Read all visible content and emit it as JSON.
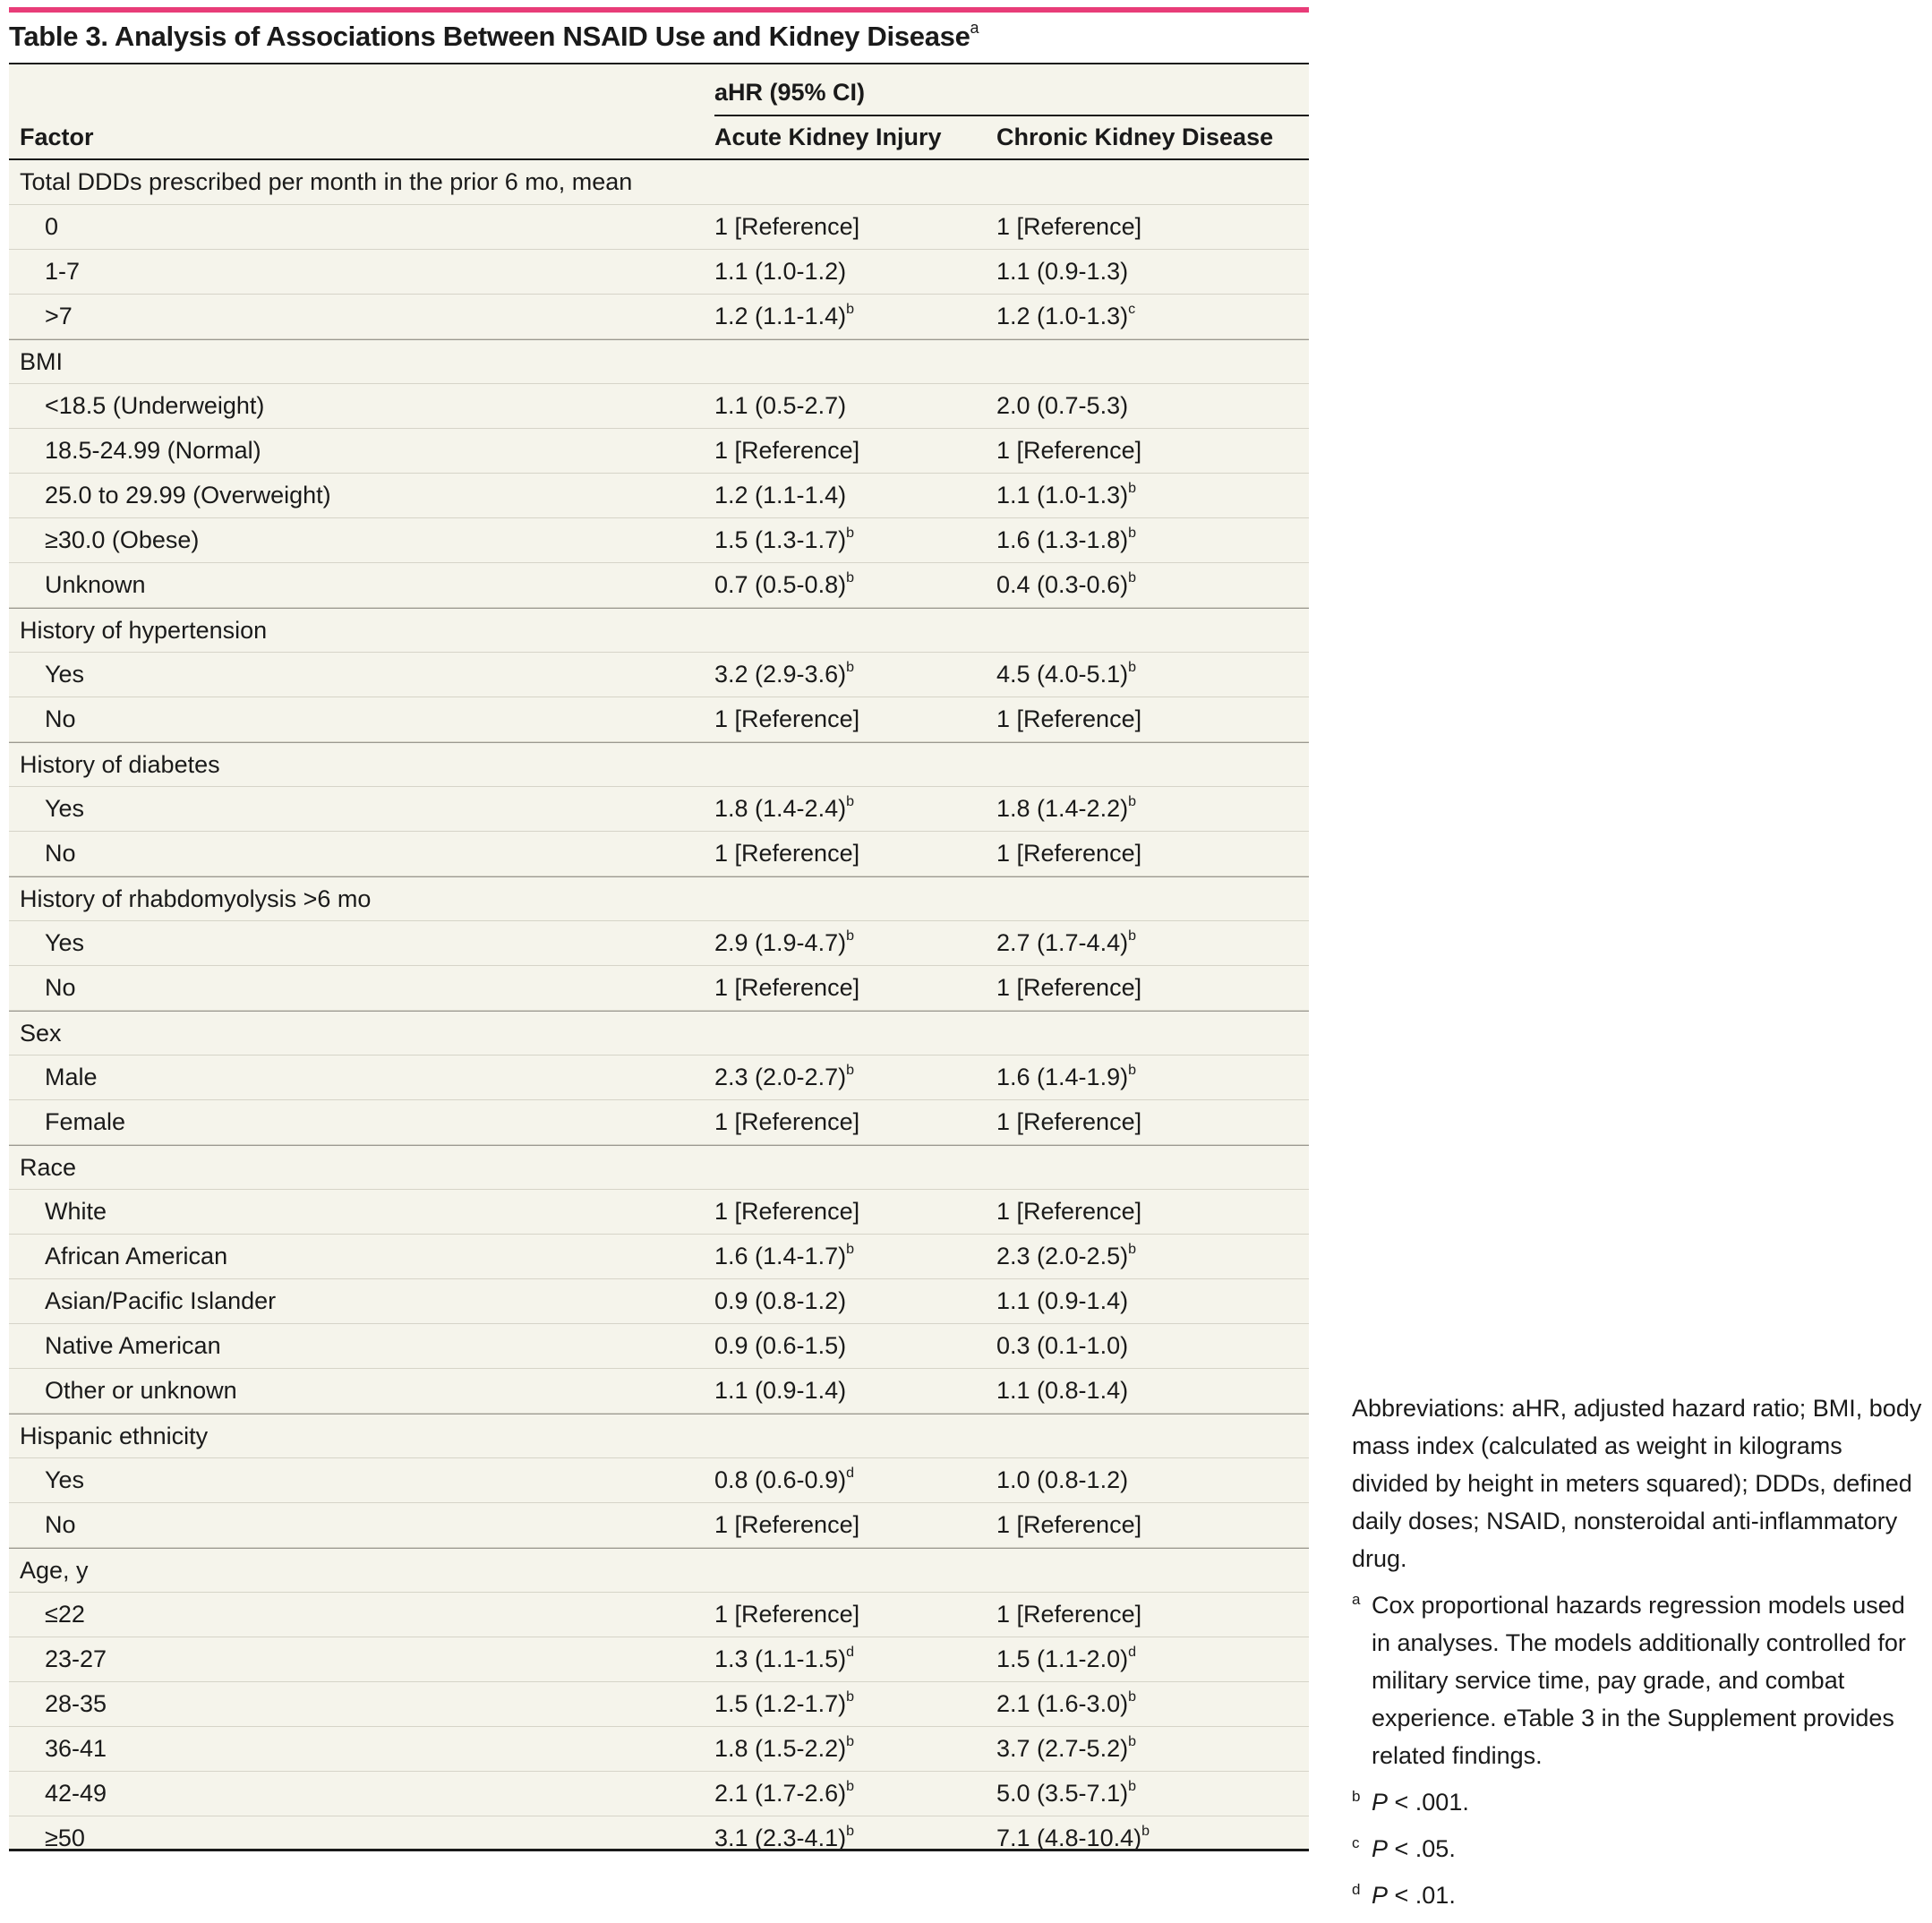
{
  "title": {
    "text": "Table 3. Analysis of Associations Between NSAID Use and Kidney Disease",
    "footnote_mark": "a"
  },
  "header": {
    "group_label": "aHR (95% CI)",
    "col_factor": "Factor",
    "col_aki": "Acute Kidney Injury",
    "col_ckd": "Chronic Kidney Disease"
  },
  "rows": [
    {
      "factor": "Total DDDs prescribed per month in the prior 6 mo, mean",
      "aki": "",
      "aki_sup": "",
      "ckd": "",
      "ckd_sup": "",
      "group": true
    },
    {
      "factor": "0",
      "aki": "1 [Reference]",
      "aki_sup": "",
      "ckd": "1 [Reference]",
      "ckd_sup": ""
    },
    {
      "factor": "1-7",
      "aki": "1.1 (1.0-1.2)",
      "aki_sup": "",
      "ckd": "1.1 (0.9-1.3)",
      "ckd_sup": ""
    },
    {
      "factor": ">7",
      "aki": "1.2 (1.1-1.4)",
      "aki_sup": "b",
      "ckd": "1.2 (1.0-1.3)",
      "ckd_sup": "c"
    },
    {
      "factor": "BMI",
      "aki": "",
      "aki_sup": "",
      "ckd": "",
      "ckd_sup": "",
      "group": true
    },
    {
      "factor": "<18.5 (Underweight)",
      "aki": "1.1 (0.5-2.7)",
      "aki_sup": "",
      "ckd": "2.0 (0.7-5.3)",
      "ckd_sup": ""
    },
    {
      "factor": "18.5-24.99 (Normal)",
      "aki": "1 [Reference]",
      "aki_sup": "",
      "ckd": "1 [Reference]",
      "ckd_sup": ""
    },
    {
      "factor": "25.0 to 29.99 (Overweight)",
      "aki": "1.2 (1.1-1.4)",
      "aki_sup": "",
      "ckd": "1.1 (1.0-1.3)",
      "ckd_sup": "b"
    },
    {
      "factor": "≥30.0 (Obese)",
      "aki": "1.5 (1.3-1.7)",
      "aki_sup": "b",
      "ckd": "1.6 (1.3-1.8)",
      "ckd_sup": "b"
    },
    {
      "factor": "Unknown",
      "aki": "0.7 (0.5-0.8)",
      "aki_sup": "b",
      "ckd": "0.4 (0.3-0.6)",
      "ckd_sup": "b"
    },
    {
      "factor": "History of hypertension",
      "aki": "",
      "aki_sup": "",
      "ckd": "",
      "ckd_sup": "",
      "group": true
    },
    {
      "factor": "Yes",
      "aki": "3.2 (2.9-3.6)",
      "aki_sup": "b",
      "ckd": "4.5 (4.0-5.1)",
      "ckd_sup": "b"
    },
    {
      "factor": "No",
      "aki": "1 [Reference]",
      "aki_sup": "",
      "ckd": "1 [Reference]",
      "ckd_sup": ""
    },
    {
      "factor": "History of diabetes",
      "aki": "",
      "aki_sup": "",
      "ckd": "",
      "ckd_sup": "",
      "group": true
    },
    {
      "factor": "Yes",
      "aki": "1.8 (1.4-2.4)",
      "aki_sup": "b",
      "ckd": "1.8 (1.4-2.2)",
      "ckd_sup": "b"
    },
    {
      "factor": "No",
      "aki": "1 [Reference]",
      "aki_sup": "",
      "ckd": "1 [Reference]",
      "ckd_sup": ""
    },
    {
      "factor": "History of rhabdomyolysis >6 mo",
      "aki": "",
      "aki_sup": "",
      "ckd": "",
      "ckd_sup": "",
      "group": true
    },
    {
      "factor": "Yes",
      "aki": "2.9 (1.9-4.7)",
      "aki_sup": "b",
      "ckd": "2.7 (1.7-4.4)",
      "ckd_sup": "b"
    },
    {
      "factor": "No",
      "aki": "1 [Reference]",
      "aki_sup": "",
      "ckd": "1 [Reference]",
      "ckd_sup": ""
    },
    {
      "factor": "Sex",
      "aki": "",
      "aki_sup": "",
      "ckd": "",
      "ckd_sup": "",
      "group": true
    },
    {
      "factor": "Male",
      "aki": "2.3 (2.0-2.7)",
      "aki_sup": "b",
      "ckd": "1.6 (1.4-1.9)",
      "ckd_sup": "b"
    },
    {
      "factor": "Female",
      "aki": "1 [Reference]",
      "aki_sup": "",
      "ckd": "1 [Reference]",
      "ckd_sup": ""
    },
    {
      "factor": "Race",
      "aki": "",
      "aki_sup": "",
      "ckd": "",
      "ckd_sup": "",
      "group": true
    },
    {
      "factor": "White",
      "aki": "1 [Reference]",
      "aki_sup": "",
      "ckd": "1 [Reference]",
      "ckd_sup": ""
    },
    {
      "factor": "African American",
      "aki": "1.6 (1.4-1.7)",
      "aki_sup": "b",
      "ckd": "2.3 (2.0-2.5)",
      "ckd_sup": "b"
    },
    {
      "factor": "Asian/Pacific Islander",
      "aki": "0.9 (0.8-1.2)",
      "aki_sup": "",
      "ckd": "1.1 (0.9-1.4)",
      "ckd_sup": ""
    },
    {
      "factor": "Native American",
      "aki": "0.9 (0.6-1.5)",
      "aki_sup": "",
      "ckd": "0.3 (0.1-1.0)",
      "ckd_sup": ""
    },
    {
      "factor": "Other or unknown",
      "aki": "1.1 (0.9-1.4)",
      "aki_sup": "",
      "ckd": "1.1 (0.8-1.4)",
      "ckd_sup": ""
    },
    {
      "factor": "Hispanic ethnicity",
      "aki": "",
      "aki_sup": "",
      "ckd": "",
      "ckd_sup": "",
      "group": true
    },
    {
      "factor": "Yes",
      "aki": "0.8 (0.6-0.9)",
      "aki_sup": "d",
      "ckd": "1.0 (0.8-1.2)",
      "ckd_sup": ""
    },
    {
      "factor": "No",
      "aki": "1 [Reference]",
      "aki_sup": "",
      "ckd": "1 [Reference]",
      "ckd_sup": ""
    },
    {
      "factor": "Age, y",
      "aki": "",
      "aki_sup": "",
      "ckd": "",
      "ckd_sup": "",
      "group": true
    },
    {
      "factor": "≤22",
      "aki": "1 [Reference]",
      "aki_sup": "",
      "ckd": "1 [Reference]",
      "ckd_sup": ""
    },
    {
      "factor": "23-27",
      "aki": "1.3 (1.1-1.5)",
      "aki_sup": "d",
      "ckd": "1.5 (1.1-2.0)",
      "ckd_sup": "d"
    },
    {
      "factor": "28-35",
      "aki": "1.5 (1.2-1.7)",
      "aki_sup": "b",
      "ckd": "2.1 (1.6-3.0)",
      "ckd_sup": "b"
    },
    {
      "factor": "36-41",
      "aki": "1.8 (1.5-2.2)",
      "aki_sup": "b",
      "ckd": "3.7 (2.7-5.2)",
      "ckd_sup": "b"
    },
    {
      "factor": "42-49",
      "aki": "2.1 (1.7-2.6)",
      "aki_sup": "b",
      "ckd": "5.0 (3.5-7.1)",
      "ckd_sup": "b"
    },
    {
      "factor": "≥50",
      "aki": "3.1 (2.3-4.1)",
      "aki_sup": "b",
      "ckd": "7.1 (4.8-10.4)",
      "ckd_sup": "b"
    }
  ],
  "notes": {
    "abbreviations": "Abbreviations: aHR, adjusted hazard ratio; BMI, body mass index (calculated as weight in kilograms divided by height in meters squared); DDDs, defined daily doses; NSAID, nonsteroidal anti-inflammatory drug.",
    "footnotes": [
      {
        "mark": "a",
        "text": "Cox proportional hazards regression models used in analyses. The models additionally controlled for military service time, pay grade, and combat experience. eTable 3 in the Supplement provides related findings.",
        "p": ""
      },
      {
        "mark": "b",
        "text": " < .001.",
        "p": "P"
      },
      {
        "mark": "c",
        "text": " < .05.",
        "p": "P"
      },
      {
        "mark": "d",
        "text": " < .01.",
        "p": "P"
      }
    ]
  },
  "colors": {
    "accent_bar": "#e83c78",
    "table_background": "#f5f4eb"
  }
}
